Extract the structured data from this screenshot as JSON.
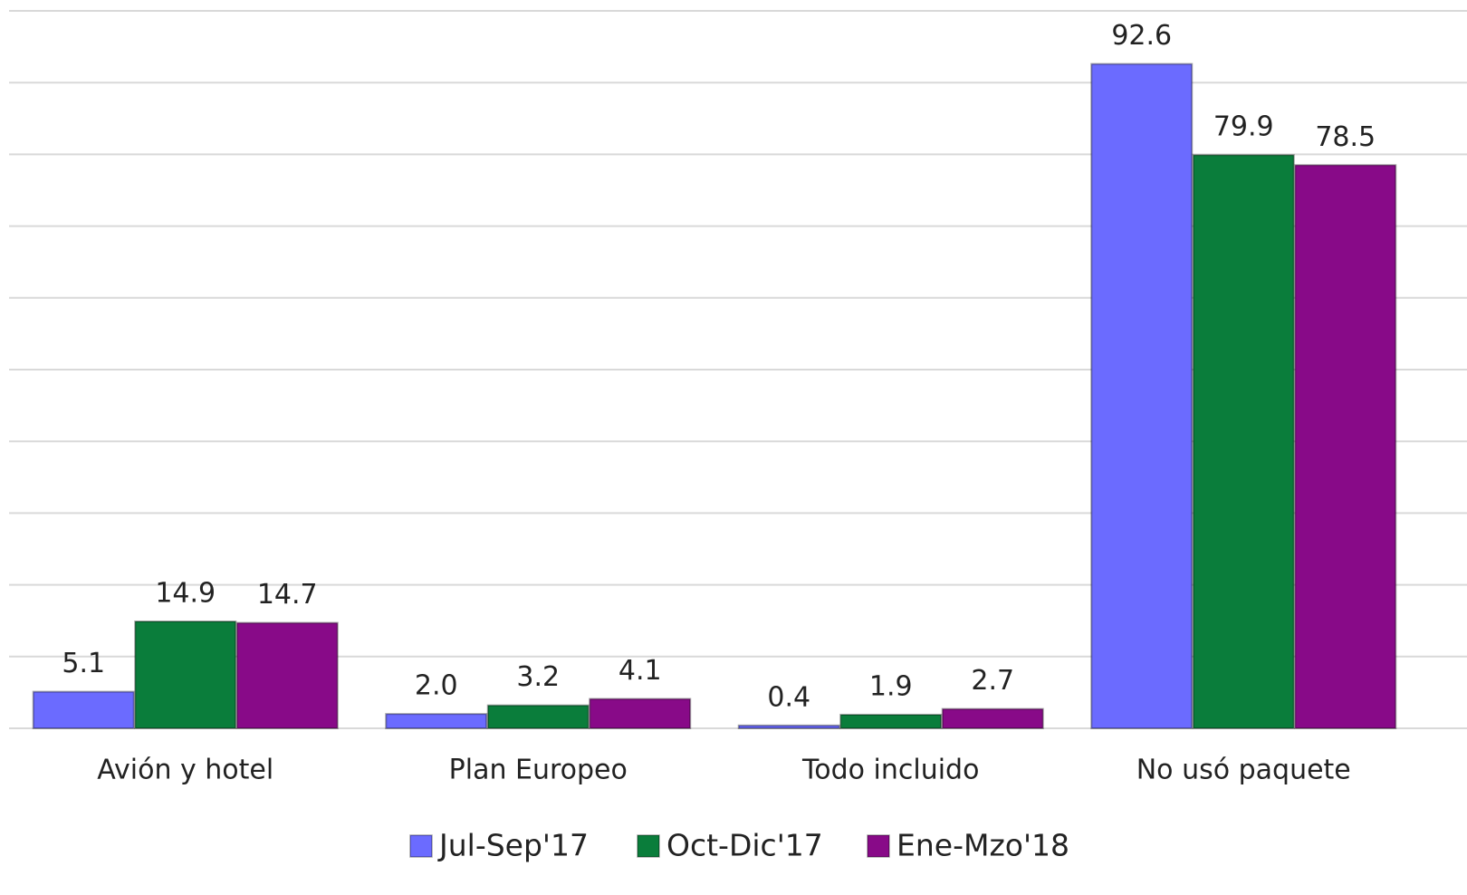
{
  "chart_data": {
    "type": "bar",
    "categories": [
      "Avión y hotel",
      "Plan Europeo",
      "Todo incluido",
      "No usó paquete"
    ],
    "series": [
      {
        "name": "Jul-Sep'17",
        "color": "#6b6bff",
        "values": [
          5.1,
          2.0,
          0.4,
          92.6
        ],
        "value_labels": [
          "5.1",
          "2.0",
          "0.4",
          "92.6"
        ]
      },
      {
        "name": "Oct-Dic'17",
        "color": "#0a7d3b",
        "values": [
          14.9,
          3.2,
          1.9,
          79.9
        ],
        "value_labels": [
          "14.9",
          "3.2",
          "1.9",
          "79.9"
        ]
      },
      {
        "name": "Ene-Mzo'18",
        "color": "#880a88",
        "values": [
          14.7,
          4.1,
          2.7,
          78.5
        ],
        "value_labels": [
          "14.7",
          "4.1",
          "2.7",
          "78.5"
        ]
      }
    ],
    "ylim": [
      0,
      100
    ],
    "yticks": [
      0,
      10,
      20,
      30,
      40,
      50,
      60,
      70,
      80,
      90,
      100
    ],
    "grid": true,
    "legend": "bottom"
  }
}
